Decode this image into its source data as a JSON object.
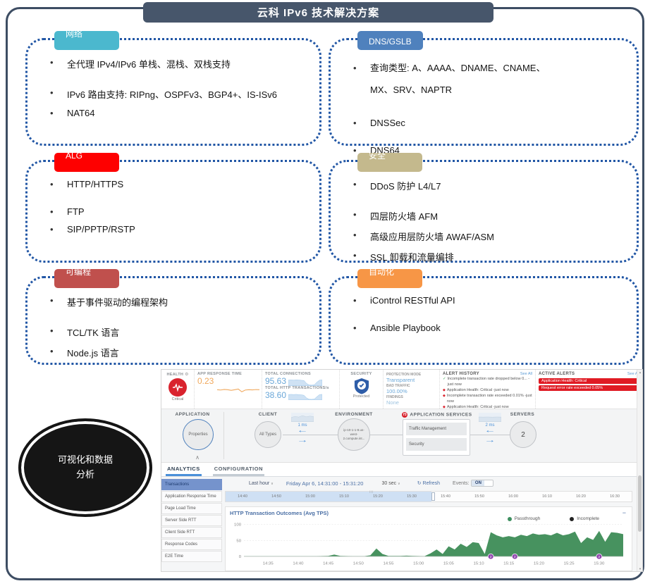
{
  "title": "云科 IPv6 技术解决方案",
  "ellipse_label": "可视化和数据分析",
  "sections": [
    {
      "label": "网络",
      "color": "#4bb8ce",
      "items": [
        {
          "text": "全代理 IPv4/IPv6 单栈、混栈、双栈支持",
          "cls": ""
        },
        {
          "text": "IPv6 路由支持: RIPng、OSPFv3、BGP4+、IS-ISv6",
          "cls": "gap nowrap"
        },
        {
          "text": "NAT64",
          "cls": ""
        }
      ]
    },
    {
      "label": "DNS/GSLB",
      "color": "#4f81bd",
      "items": [
        {
          "text": "查询类型: A、AAAA、DNAME、CNAME、MX、SRV、NAPTR",
          "cls": "wrap2"
        },
        {
          "text": "DNSSec",
          "cls": "gap"
        },
        {
          "text": "DNS64",
          "cls": "gap"
        }
      ]
    },
    {
      "label": "ALG",
      "color": "#fe0000",
      "items": [
        {
          "text": "HTTP/HTTPS",
          "cls": ""
        },
        {
          "text": "FTP",
          "cls": "gap"
        },
        {
          "text": "SIP/PPTP/RSTP",
          "cls": ""
        }
      ]
    },
    {
      "label": "安全",
      "color": "#c4b98d",
      "items": [
        {
          "text": "DDoS 防护 L4/L7",
          "cls": ""
        },
        {
          "text": "四层防火墙 AFM",
          "cls": "gap"
        },
        {
          "text": "高级应用层防火墙 AWAF/ASM",
          "cls": ""
        },
        {
          "text": "SSL 卸载和流量编排",
          "cls": ""
        }
      ]
    },
    {
      "label": "可编程",
      "color": "#c0504d",
      "items": [
        {
          "text": "基于事件驱动的编程架构",
          "cls": ""
        },
        {
          "text": "TCL/TK 语言",
          "cls": "gap"
        },
        {
          "text": "Node.js 语言",
          "cls": ""
        }
      ]
    },
    {
      "label": "自动化",
      "color": "#f79646",
      "items": [
        {
          "text": "iControl RESTful API",
          "cls": ""
        },
        {
          "text": "Ansible Playbook",
          "cls": "gap"
        }
      ]
    }
  ],
  "dashboard": {
    "health": {
      "label": "HEALTH",
      "status": "Critical"
    },
    "app_response": {
      "label": "APP RESPONSE TIME",
      "value": "0.23"
    },
    "connections": {
      "label": "TOTAL CONNECTIONS",
      "value": "95.63"
    },
    "transactions": {
      "label": "TOTAL HTTP TRANSACTIONS/s",
      "value": "38.60"
    },
    "security": {
      "label": "SECURITY",
      "status": "Protected"
    },
    "protection": {
      "mode_label": "PROTECTION MODE",
      "mode": "Transparent",
      "bad_label": "BAD TRAFFIC",
      "bad": "100.00%",
      "findings_label": "FINDINGS",
      "findings": "None"
    },
    "alert_history": {
      "label": "ALERT HISTORY",
      "see_all": "See All",
      "items": [
        {
          "icon": "check",
          "text": "Incomplete transaction rate dropped below 0... -just now"
        },
        {
          "icon": "diamond",
          "text": "Application Health: Critical -just now"
        },
        {
          "icon": "diamond",
          "text": "Incomplete transaction rate exceeded 0.01% -just now"
        },
        {
          "icon": "diamond",
          "text": "Application Health: Critical -just now"
        },
        {
          "icon": "diamond",
          "text": "Application Health: Critical -just now"
        }
      ]
    },
    "active_alerts": {
      "label": "ACTIVE ALERTS",
      "see_all": "See All",
      "items": [
        "Application Health: Critical",
        "Request error rate exceeded 0.05%"
      ]
    },
    "map": {
      "application_label": "APPLICATION",
      "application_node": "Properties",
      "client_label": "CLIENT",
      "client_node": "All Types",
      "client_latency": "1 ms",
      "environment_label": "ENVIRONMENT",
      "environment_node": "ip-10-1-1-9.us-west-2.compute.int...",
      "services_label": "APPLICATION SERVICES",
      "services": [
        "Traffic Management",
        "Security"
      ],
      "server_latency": "2 ms",
      "servers_label": "SERVERS",
      "servers_count": "2"
    },
    "tabs": [
      {
        "label": "ANALYTICS",
        "sel": "active"
      },
      {
        "label": "CONFIGURATION",
        "sel": ""
      }
    ],
    "sidebar": [
      {
        "label": "Transactions",
        "sel": "selected"
      },
      {
        "label": "Application Response Time",
        "sel": ""
      },
      {
        "label": "Page Load Time",
        "sel": ""
      },
      {
        "label": "Server Side RTT",
        "sel": ""
      },
      {
        "label": "Client Side RTT",
        "sel": ""
      },
      {
        "label": "Response Codes",
        "sel": ""
      },
      {
        "label": "E2E Time",
        "sel": ""
      }
    ],
    "toolbar": {
      "range": "Last hour",
      "date": "Friday Apr 6, 14:31:00 - 15:31:20",
      "interval": "30 sec",
      "refresh": "Refresh",
      "events_label": "Events:",
      "events_state": "ON"
    },
    "timeline": {
      "ticks": [
        "14:40",
        "14:50",
        "15:00",
        "15:10",
        "15:20",
        "15:30",
        "15:40",
        "15:50",
        "16:00",
        "16:10",
        "16:20",
        "16:30"
      ]
    },
    "sparklines": {
      "app_response": [
        30,
        28,
        32,
        30,
        26,
        30,
        35,
        15,
        28,
        30,
        29,
        31,
        30
      ],
      "connections": [
        62,
        64,
        62,
        65,
        63,
        60,
        58,
        25,
        8,
        6,
        10,
        40,
        62,
        64
      ],
      "transactions": [
        58,
        60,
        58,
        60,
        57,
        55,
        50,
        20,
        6,
        5,
        8,
        35,
        58,
        60
      ],
      "client": [
        50,
        62,
        55,
        72,
        58,
        66,
        60
      ],
      "server": [
        56,
        55,
        56,
        54,
        56,
        55
      ]
    }
  },
  "chart_data": {
    "type": "area",
    "title": "HTTP Transaction Outcomes (Avg TPS)",
    "xlabel": "",
    "ylabel": "",
    "ylim": [
      0,
      100
    ],
    "y_ticks": [
      0,
      50,
      100
    ],
    "x_start_minute": 0,
    "x_end_minute": 63,
    "x_ticks": [
      {
        "m": 4,
        "label": "14:35"
      },
      {
        "m": 9,
        "label": "14:40"
      },
      {
        "m": 14,
        "label": "14:45"
      },
      {
        "m": 19,
        "label": "14:50"
      },
      {
        "m": 24,
        "label": "14:55"
      },
      {
        "m": 29,
        "label": "15:00"
      },
      {
        "m": 34,
        "label": "15:05"
      },
      {
        "m": 39,
        "label": "15:10"
      },
      {
        "m": 44,
        "label": "15:15"
      },
      {
        "m": 49,
        "label": "15:20"
      },
      {
        "m": 54,
        "label": "15:25"
      },
      {
        "m": 59,
        "label": "15:30"
      }
    ],
    "legend": [
      {
        "name": "Passthrough",
        "color": "#3d8f5f"
      },
      {
        "name": "Incomplete",
        "color": "#222222"
      }
    ],
    "series": [
      {
        "name": "Passthrough",
        "color": "#47925f",
        "points": [
          [
            0,
            1
          ],
          [
            3,
            1
          ],
          [
            6,
            1
          ],
          [
            9,
            1
          ],
          [
            12,
            1
          ],
          [
            14,
            2
          ],
          [
            15,
            6
          ],
          [
            16,
            2
          ],
          [
            18,
            1
          ],
          [
            20,
            1
          ],
          [
            21,
            4
          ],
          [
            22,
            25
          ],
          [
            23,
            8
          ],
          [
            24,
            2
          ],
          [
            26,
            2
          ],
          [
            27,
            3
          ],
          [
            28,
            2
          ],
          [
            30,
            1
          ],
          [
            31,
            10
          ],
          [
            32,
            22
          ],
          [
            33,
            8
          ],
          [
            34,
            32
          ],
          [
            35,
            22
          ],
          [
            36,
            40
          ],
          [
            37,
            30
          ],
          [
            38,
            45
          ],
          [
            39,
            42
          ],
          [
            40,
            8
          ],
          [
            41,
            76
          ],
          [
            42,
            66
          ],
          [
            43,
            60
          ],
          [
            44,
            64
          ],
          [
            45,
            60
          ],
          [
            46,
            68
          ],
          [
            47,
            64
          ],
          [
            48,
            72
          ],
          [
            49,
            68
          ],
          [
            50,
            70
          ],
          [
            51,
            66
          ],
          [
            52,
            74
          ],
          [
            53,
            66
          ],
          [
            54,
            70
          ],
          [
            55,
            78
          ],
          [
            56,
            42
          ],
          [
            57,
            60
          ],
          [
            58,
            52
          ],
          [
            59,
            80
          ],
          [
            60,
            46
          ],
          [
            61,
            76
          ],
          [
            62,
            74
          ],
          [
            63,
            70
          ]
        ]
      },
      {
        "name": "Incomplete",
        "color": "#222222",
        "points": [
          [
            0,
            0
          ],
          [
            63,
            0
          ]
        ]
      }
    ],
    "event_markers": [
      {
        "m": 41,
        "label": "2"
      },
      {
        "m": 45,
        "label": "2"
      },
      {
        "m": 59,
        "label": "2"
      }
    ]
  }
}
